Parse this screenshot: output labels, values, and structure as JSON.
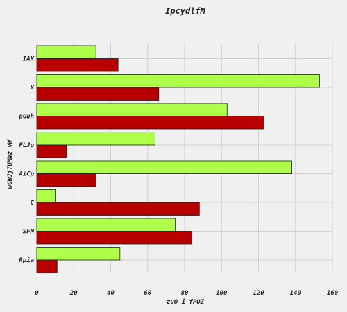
{
  "chart_data": {
    "type": "bar",
    "orientation": "horizontal",
    "title": "IpcydlfM",
    "xlabel": "zuO i  fPOZ",
    "ylabel": "wGWJjTUMWz vW",
    "categories": [
      "IAK",
      "Y",
      "pGuh",
      "FLJo",
      "AiCp",
      "C",
      "SFM",
      "Rpia"
    ],
    "series": [
      {
        "color": "#adff4a",
        "values": [
          32,
          153,
          103,
          64,
          138,
          10,
          75,
          45
        ]
      },
      {
        "color": "#b80000",
        "values": [
          44,
          66,
          123,
          16,
          32,
          88,
          84,
          11
        ]
      }
    ],
    "xlim": [
      0,
      160
    ],
    "xticks": [
      0,
      20,
      40,
      60,
      80,
      100,
      120,
      140,
      160
    ],
    "grid": true,
    "legend": false
  }
}
